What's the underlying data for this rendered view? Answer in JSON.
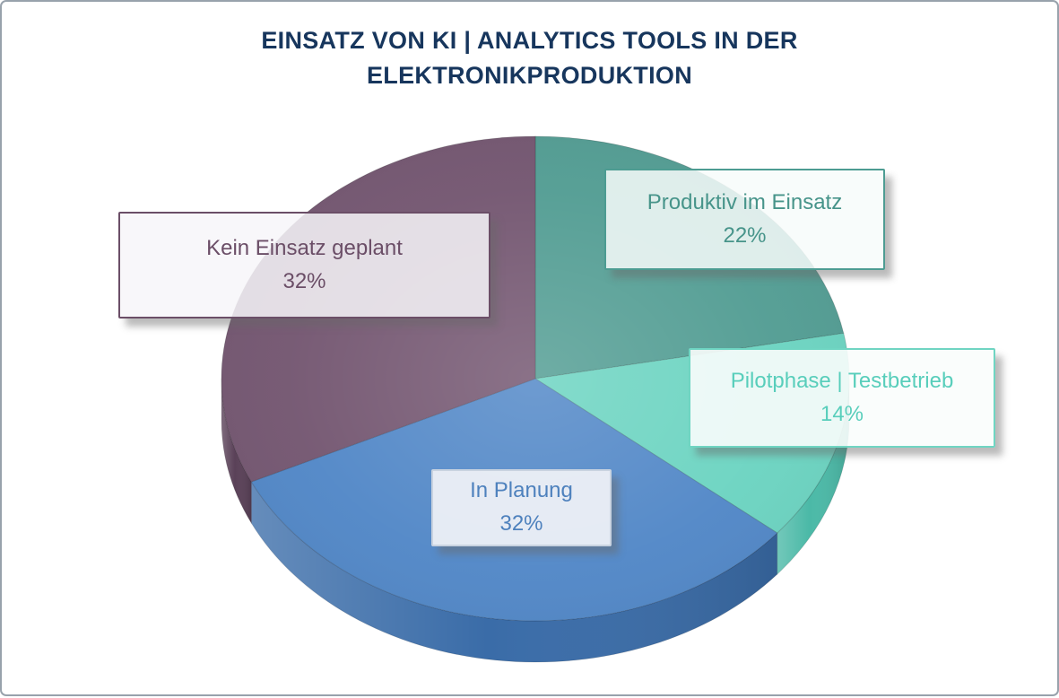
{
  "frame": {
    "border_color": "#98A2AC",
    "background": "#FFFFFF"
  },
  "title": "EINSATZ VON KI | ANALYTICS TOOLS IN DER ELEKTRONIKPRODUKTION",
  "title_color": "#17365D",
  "chart_data": {
    "type": "pie",
    "style": "3d",
    "title": "EINSATZ VON KI | ANALYTICS TOOLS IN DER ELEKTRONIKPRODUKTION",
    "unit": "%",
    "start_angle_deg": 0,
    "direction": "clockwise",
    "total": 100,
    "legend_position": "callout-boxes",
    "slices": [
      {
        "label": "Produktiv im Einsatz",
        "value": 22,
        "display": "22%",
        "color": "#4F9B91",
        "side_color": "#3C7F76",
        "text_color": "#47948A",
        "box_border": "#4D9C92",
        "box_bg": "rgba(247,251,250,0.85)"
      },
      {
        "label": "Pilotphase | Testbetrieb",
        "value": 14,
        "display": "14%",
        "color": "#69D3C0",
        "side_color": "#4BB9A7",
        "text_color": "#58CEBB",
        "box_border": "#6FD5C2",
        "box_bg": "rgba(250,253,252,0.90)"
      },
      {
        "label": "In Planung",
        "value": 32,
        "display": "32%",
        "color": "#4E85C6",
        "side_color": "#3A6CA8",
        "text_color": "#4E81BD",
        "box_border": "#C9D3E0",
        "box_bg": "rgba(237,240,246,0.95)"
      },
      {
        "label": "Kein Einsatz geplant",
        "value": 32,
        "display": "32%",
        "color": "#71536E",
        "side_color": "#5A4158",
        "text_color": "#6B4E67",
        "box_border": "#6B4E67",
        "box_bg": "rgba(247,246,249,0.85)"
      }
    ]
  }
}
